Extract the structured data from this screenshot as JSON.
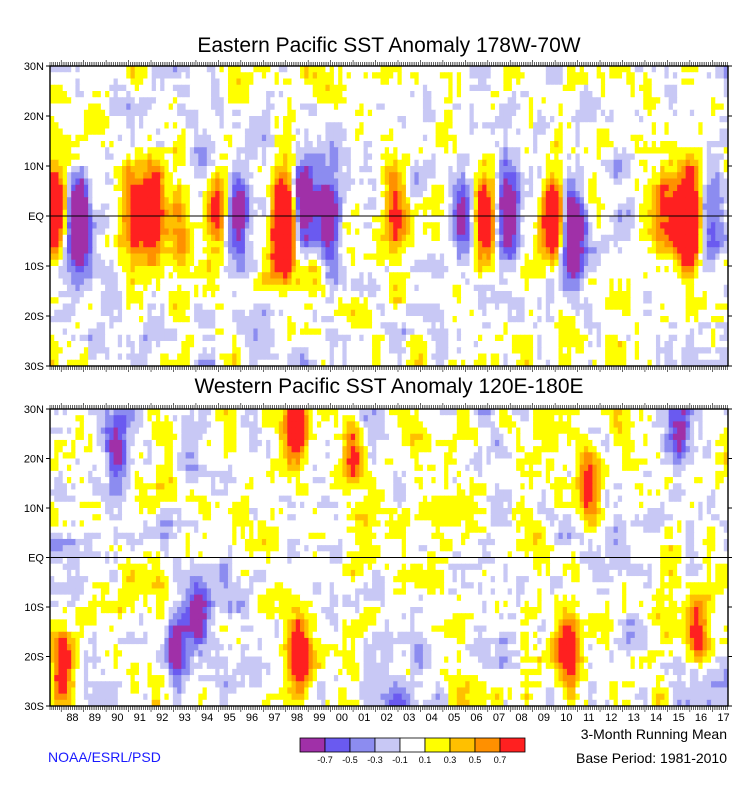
{
  "colors": {
    "scale": [
      "#a030a8",
      "#6a5af0",
      "#8c8cf0",
      "#c8c8f5",
      "#ffffff",
      "#ffff00",
      "#ffc000",
      "#ff9000",
      "#ff2020"
    ],
    "frame": "#000000",
    "credit": "#1a1aff"
  },
  "chart_data": [
    {
      "type": "heatmap",
      "title": "Eastern Pacific SST Anomaly 178W-70W",
      "y_tick_labels": [
        "30N",
        "20N",
        "10N",
        "EQ",
        "10S",
        "20S",
        "30S"
      ],
      "y_range": [
        -30,
        30
      ],
      "x_range_years": [
        1987.5,
        2017.7
      ],
      "equator_line": true
    },
    {
      "type": "heatmap",
      "title": "Western Pacific SST Anomaly 120E-180E",
      "y_tick_labels": [
        "30N",
        "20N",
        "10N",
        "EQ",
        "10S",
        "20S",
        "30S"
      ],
      "y_range": [
        -30,
        30
      ],
      "x_range_years": [
        1987.5,
        2017.7
      ],
      "x_tick_labels": [
        "88",
        "89",
        "90",
        "91",
        "92",
        "93",
        "94",
        "95",
        "96",
        "97",
        "98",
        "99",
        "00",
        "01",
        "02",
        "03",
        "04",
        "05",
        "06",
        "07",
        "08",
        "09",
        "10",
        "11",
        "12",
        "13",
        "14",
        "15",
        "16",
        "17"
      ],
      "equator_line": true
    }
  ],
  "colorbar": {
    "labels": [
      "-0.7",
      "-0.5",
      "-0.3",
      "-0.1",
      "0.1",
      "0.3",
      "0.5",
      "0.7"
    ]
  },
  "footer": {
    "credit": "NOAA/ESRL/PSD",
    "note_line1": "3-Month Running Mean",
    "note_line2": "Base Period: 1981-2010"
  },
  "anomaly_events": {
    "east": [
      {
        "year": 1987.6,
        "lat": 0,
        "value": 1.5
      },
      {
        "year": 1988.8,
        "lat": -2,
        "value": -1.6
      },
      {
        "year": 1991.3,
        "lat": 0,
        "value": 0.9
      },
      {
        "year": 1992.1,
        "lat": 0,
        "value": 1.2
      },
      {
        "year": 1993.3,
        "lat": 0,
        "value": 0.6
      },
      {
        "year": 1994.9,
        "lat": 0,
        "value": 0.9
      },
      {
        "year": 1995.9,
        "lat": 0,
        "value": -0.9
      },
      {
        "year": 1997.9,
        "lat": -2,
        "value": 2.5
      },
      {
        "year": 1998.8,
        "lat": 2,
        "value": -1.2
      },
      {
        "year": 1999.9,
        "lat": 0,
        "value": -1.3
      },
      {
        "year": 2002.9,
        "lat": 0,
        "value": 0.9
      },
      {
        "year": 2005.9,
        "lat": 0,
        "value": -0.8
      },
      {
        "year": 2006.9,
        "lat": 0,
        "value": 0.9
      },
      {
        "year": 2007.9,
        "lat": 0,
        "value": -1.2
      },
      {
        "year": 2009.9,
        "lat": 0,
        "value": 1.1
      },
      {
        "year": 2010.8,
        "lat": -4,
        "value": -1.4
      },
      {
        "year": 2014.9,
        "lat": 0,
        "value": 0.8
      },
      {
        "year": 2015.9,
        "lat": 0,
        "value": 2.3
      },
      {
        "year": 2016.9,
        "lat": 0,
        "value": -0.6
      }
    ],
    "west": [
      {
        "year": 1988.1,
        "lat": -22,
        "value": 1.1
      },
      {
        "year": 1990.5,
        "lat": 22,
        "value": -0.9
      },
      {
        "year": 1993.1,
        "lat": -18,
        "value": -1.0
      },
      {
        "year": 1994.1,
        "lat": -12,
        "value": -1.0
      },
      {
        "year": 1998.5,
        "lat": 26,
        "value": 1.3
      },
      {
        "year": 1998.6,
        "lat": -20,
        "value": 1.4
      },
      {
        "year": 2001.0,
        "lat": 20,
        "value": 0.9
      },
      {
        "year": 2010.6,
        "lat": -20,
        "value": 1.1
      },
      {
        "year": 2011.5,
        "lat": 15,
        "value": 0.9
      },
      {
        "year": 2015.5,
        "lat": 24,
        "value": -0.8
      },
      {
        "year": 2016.3,
        "lat": -15,
        "value": 1.0
      }
    ]
  }
}
